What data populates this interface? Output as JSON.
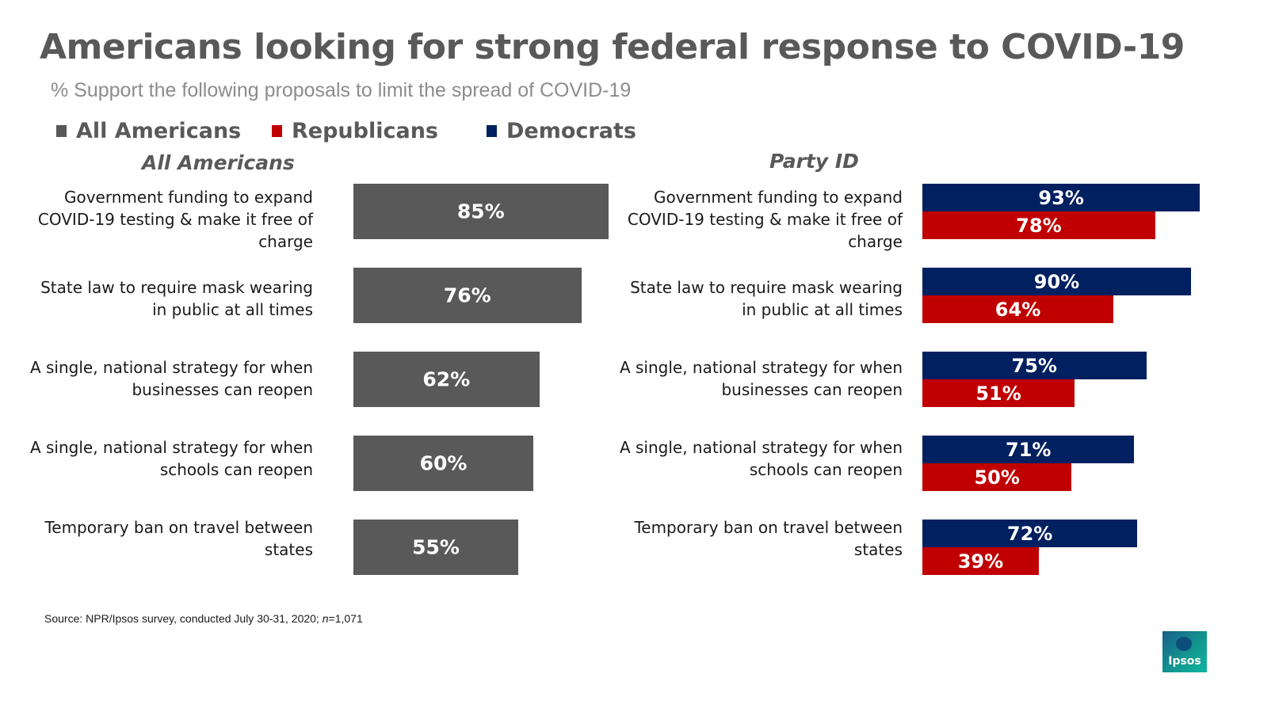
{
  "header": {
    "title": "Americans looking for strong federal response to COVID-19",
    "subtitle": "% Support the following proposals to limit the spread of COVID-19"
  },
  "legend": [
    {
      "label": "All Americans",
      "color": "#595959"
    },
    {
      "label": "Republicans",
      "color": "#c00000"
    },
    {
      "label": "Democrats",
      "color": "#002060"
    }
  ],
  "chart_data": [
    {
      "type": "bar",
      "orientation": "horizontal",
      "title": "All Americans",
      "categories": [
        "Government funding to expand COVID-19 testing & make it free of charge",
        "State law to require mask wearing in public at all times",
        "A single, national strategy for when businesses can reopen",
        "A single, national strategy for when schools can reopen",
        "Temporary ban on travel between states"
      ],
      "category_lines": [
        [
          "Government funding to expand",
          "COVID-19 testing & make it free of",
          "charge"
        ],
        [
          "State law to require mask wearing",
          "in public at all times"
        ],
        [
          "A single, national strategy for when",
          "businesses can reopen"
        ],
        [
          "A single, national strategy for when",
          "schools can reopen"
        ],
        [
          "Temporary ban on travel between",
          "states"
        ]
      ],
      "series": [
        {
          "name": "All Americans",
          "color": "#595959",
          "values": [
            85,
            76,
            62,
            60,
            55
          ],
          "labels": [
            "85%",
            "76%",
            "62%",
            "60%",
            "55%"
          ]
        }
      ],
      "xlim": [
        0,
        100
      ]
    },
    {
      "type": "bar",
      "orientation": "horizontal",
      "title": "Party ID",
      "categories": [
        "Government funding to expand COVID-19 testing & make it free of charge",
        "State law to require mask wearing in public at all times",
        "A single, national strategy for when businesses can reopen",
        "A single, national strategy for when schools can reopen",
        "Temporary ban on travel between states"
      ],
      "category_lines": [
        [
          "Government funding to expand",
          "COVID-19 testing & make it free of",
          "charge"
        ],
        [
          "State law to require mask wearing",
          "in public at all times"
        ],
        [
          "A single, national strategy for when",
          "businesses can reopen"
        ],
        [
          "A single, national strategy for when",
          "schools can reopen"
        ],
        [
          "Temporary ban on travel between",
          "states"
        ]
      ],
      "series": [
        {
          "name": "Democrats",
          "color": "#002060",
          "values": [
            93,
            90,
            75,
            71,
            72
          ],
          "labels": [
            "93%",
            "90%",
            "75%",
            "71%",
            "72%"
          ]
        },
        {
          "name": "Republicans",
          "color": "#c00000",
          "values": [
            78,
            64,
            51,
            50,
            39
          ],
          "labels": [
            "78%",
            "64%",
            "51%",
            "50%",
            "39%"
          ]
        }
      ],
      "xlim": [
        0,
        100
      ]
    }
  ],
  "footer": {
    "source_prefix": "Source: NPR/Ipsos survey, conducted July 30-31, 2020; ",
    "source_n": "n",
    "source_suffix": "=1,071"
  },
  "logo": {
    "text": "Ipsos"
  }
}
